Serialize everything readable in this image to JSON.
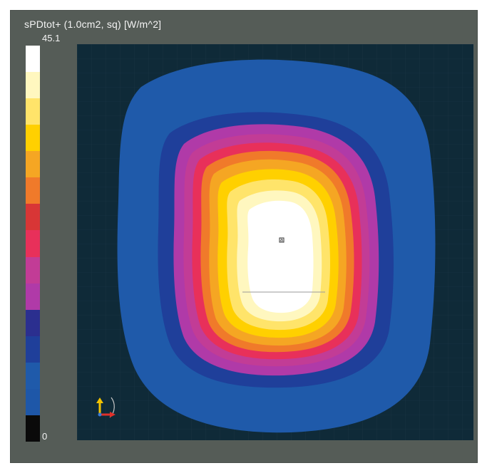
{
  "title": "sPDtot+ (1.0cm2, sq) [W/m^2]",
  "colorbar": {
    "max_label": "45.1",
    "min_label": "0",
    "colors_top_to_bottom": [
      "#ffffff",
      "#fff7bf",
      "#ffe46a",
      "#ffd000",
      "#f5a623",
      "#f07a2a",
      "#d83636",
      "#e8305a",
      "#c23c96",
      "#b03aa8",
      "#2b2f8f",
      "#1f3f9a",
      "#1f5aaa",
      "#1e57a8",
      "#0a0a0a"
    ]
  },
  "plot": {
    "background": "#0f2a38",
    "marker_label": "a"
  }
}
